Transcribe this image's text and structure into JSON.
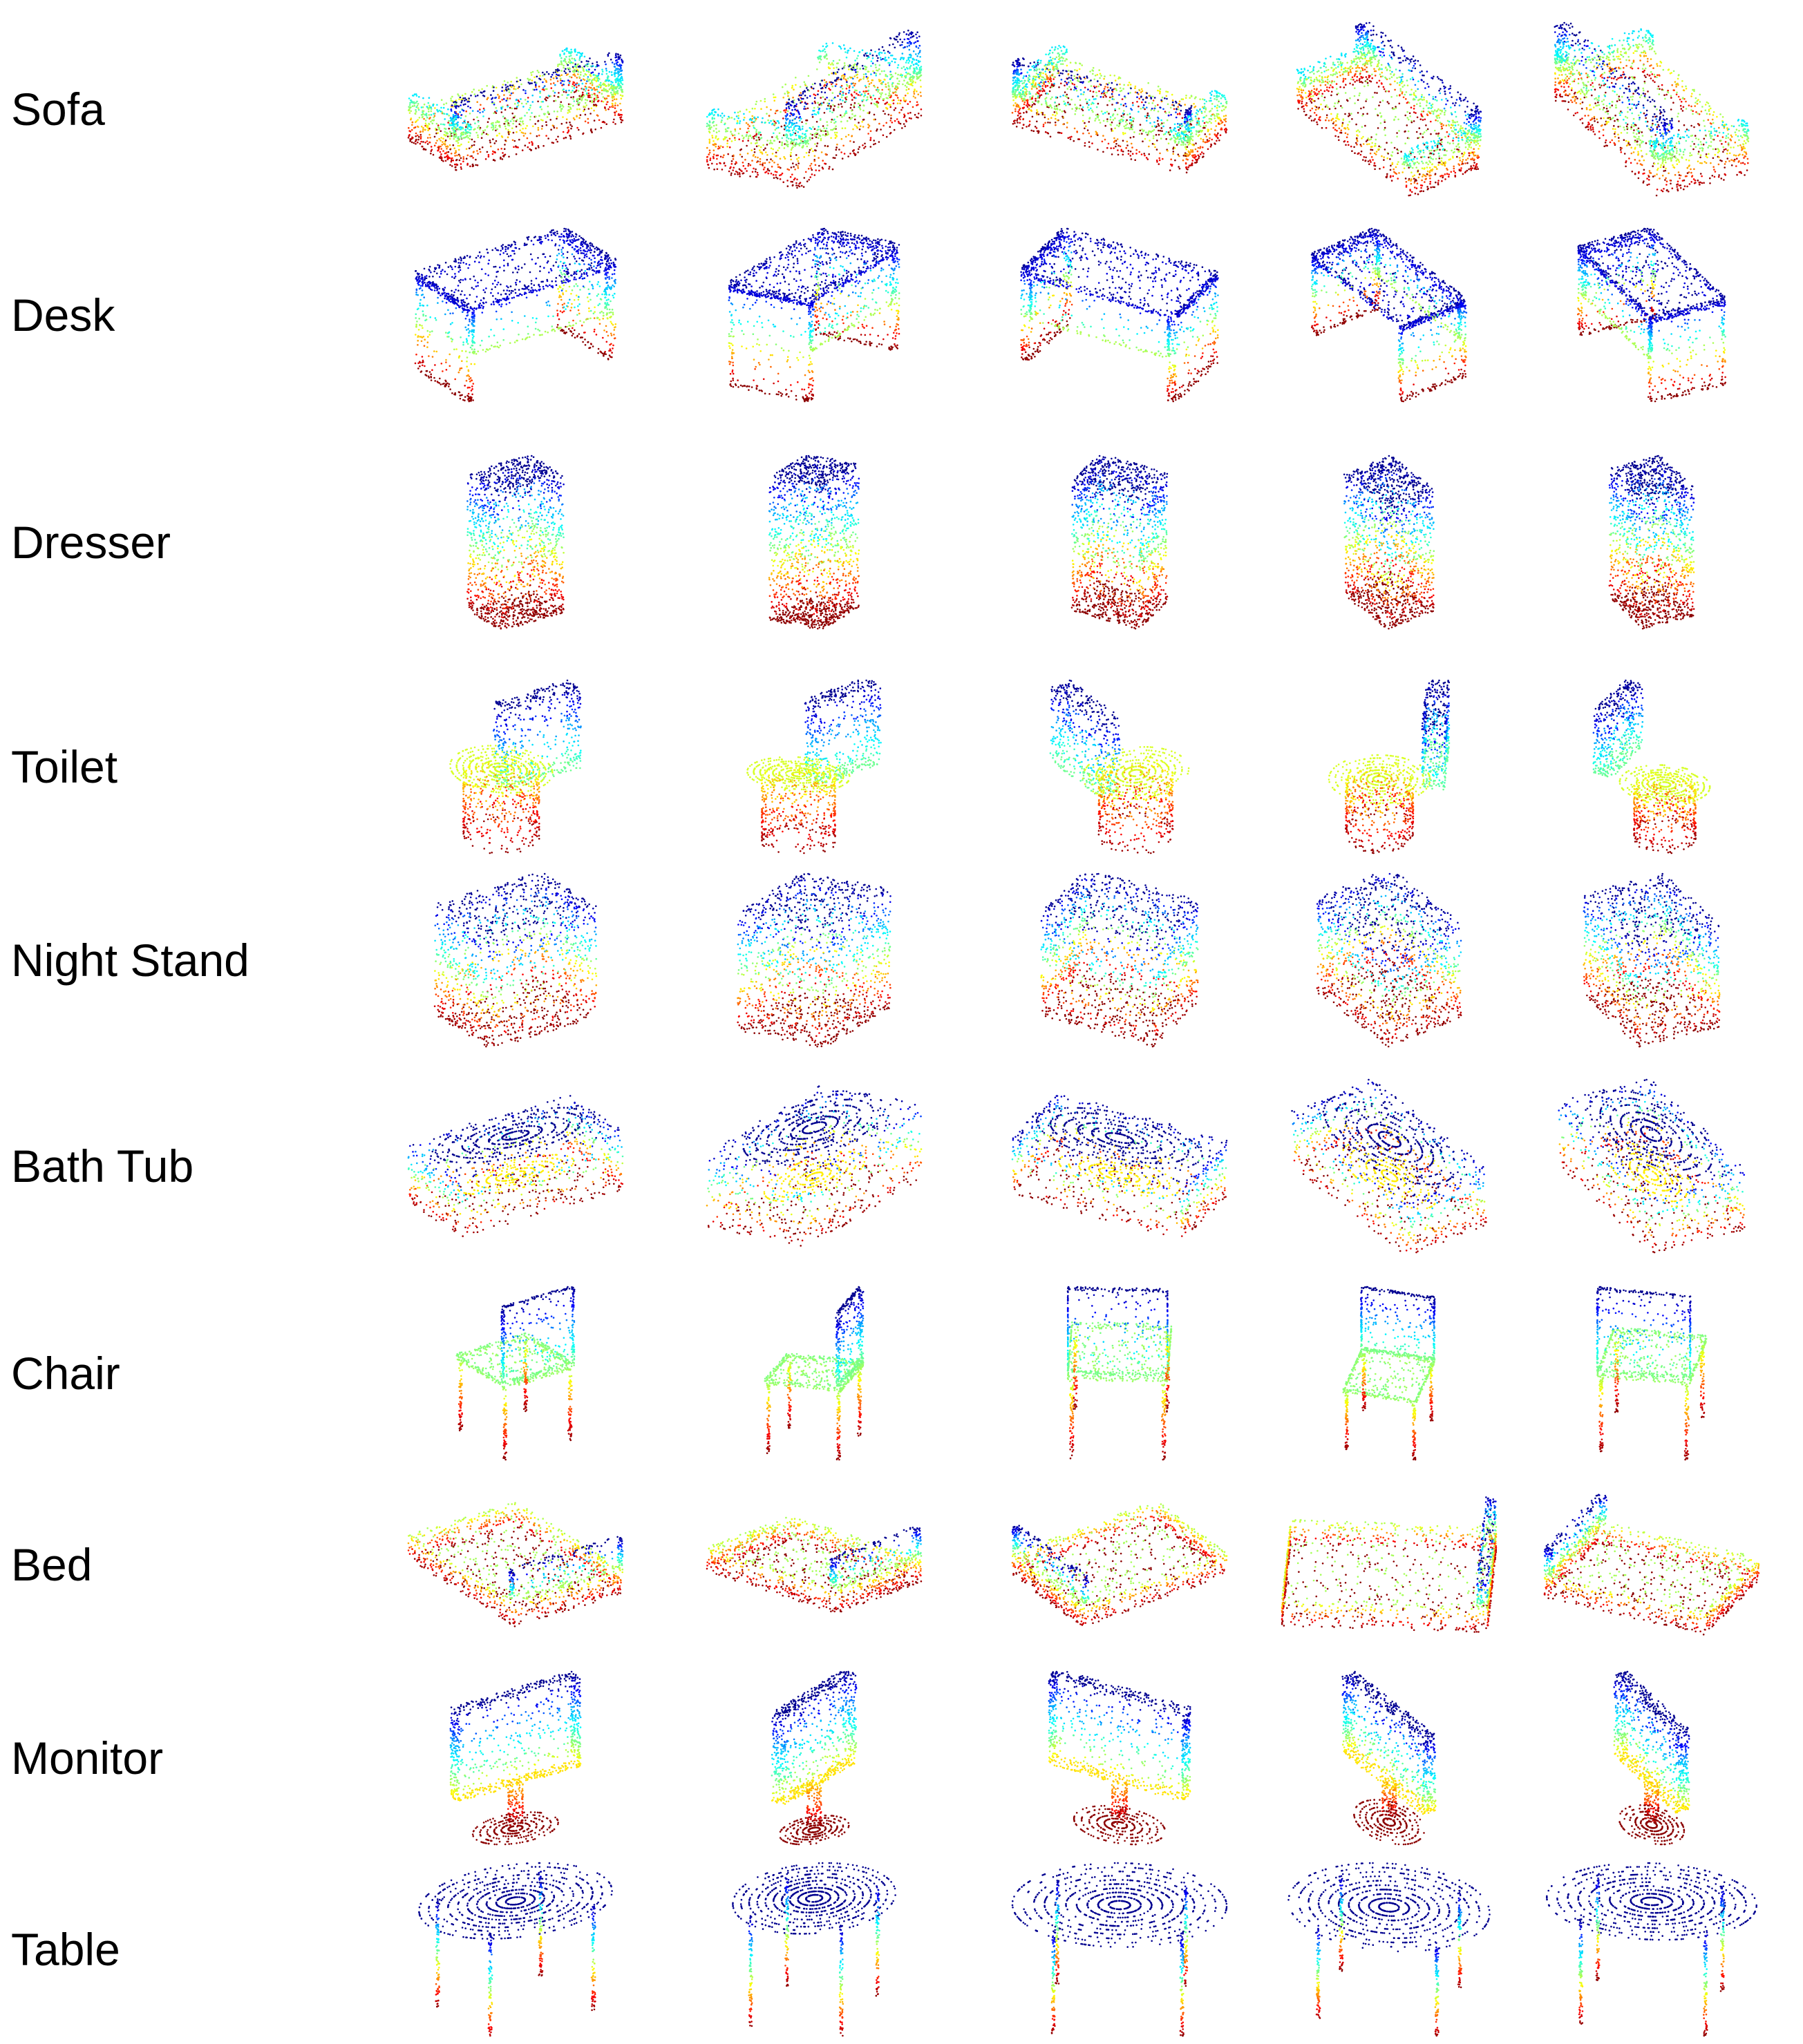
{
  "figure": {
    "categories": [
      {
        "label": "Sofa",
        "shape": "sofa",
        "samples": 5
      },
      {
        "label": "Desk",
        "shape": "desk",
        "samples": 5
      },
      {
        "label": "Dresser",
        "shape": "dresser",
        "samples": 5
      },
      {
        "label": "Toilet",
        "shape": "toilet",
        "samples": 5
      },
      {
        "label": "Night Stand",
        "shape": "nightstand",
        "samples": 5
      },
      {
        "label": "Bath Tub",
        "shape": "bathtub",
        "samples": 5
      },
      {
        "label": "Chair",
        "shape": "chair",
        "samples": 5
      },
      {
        "label": "Bed",
        "shape": "bed",
        "samples": 5
      },
      {
        "label": "Monitor",
        "shape": "monitor",
        "samples": 5
      },
      {
        "label": "Table",
        "shape": "table",
        "samples": 5
      }
    ],
    "colormap": [
      "#00008f",
      "#0000ff",
      "#00aaff",
      "#00ffff",
      "#7fff7f",
      "#ffff00",
      "#ff8000",
      "#ff0000",
      "#8b0000"
    ],
    "background": "#ffffff"
  }
}
